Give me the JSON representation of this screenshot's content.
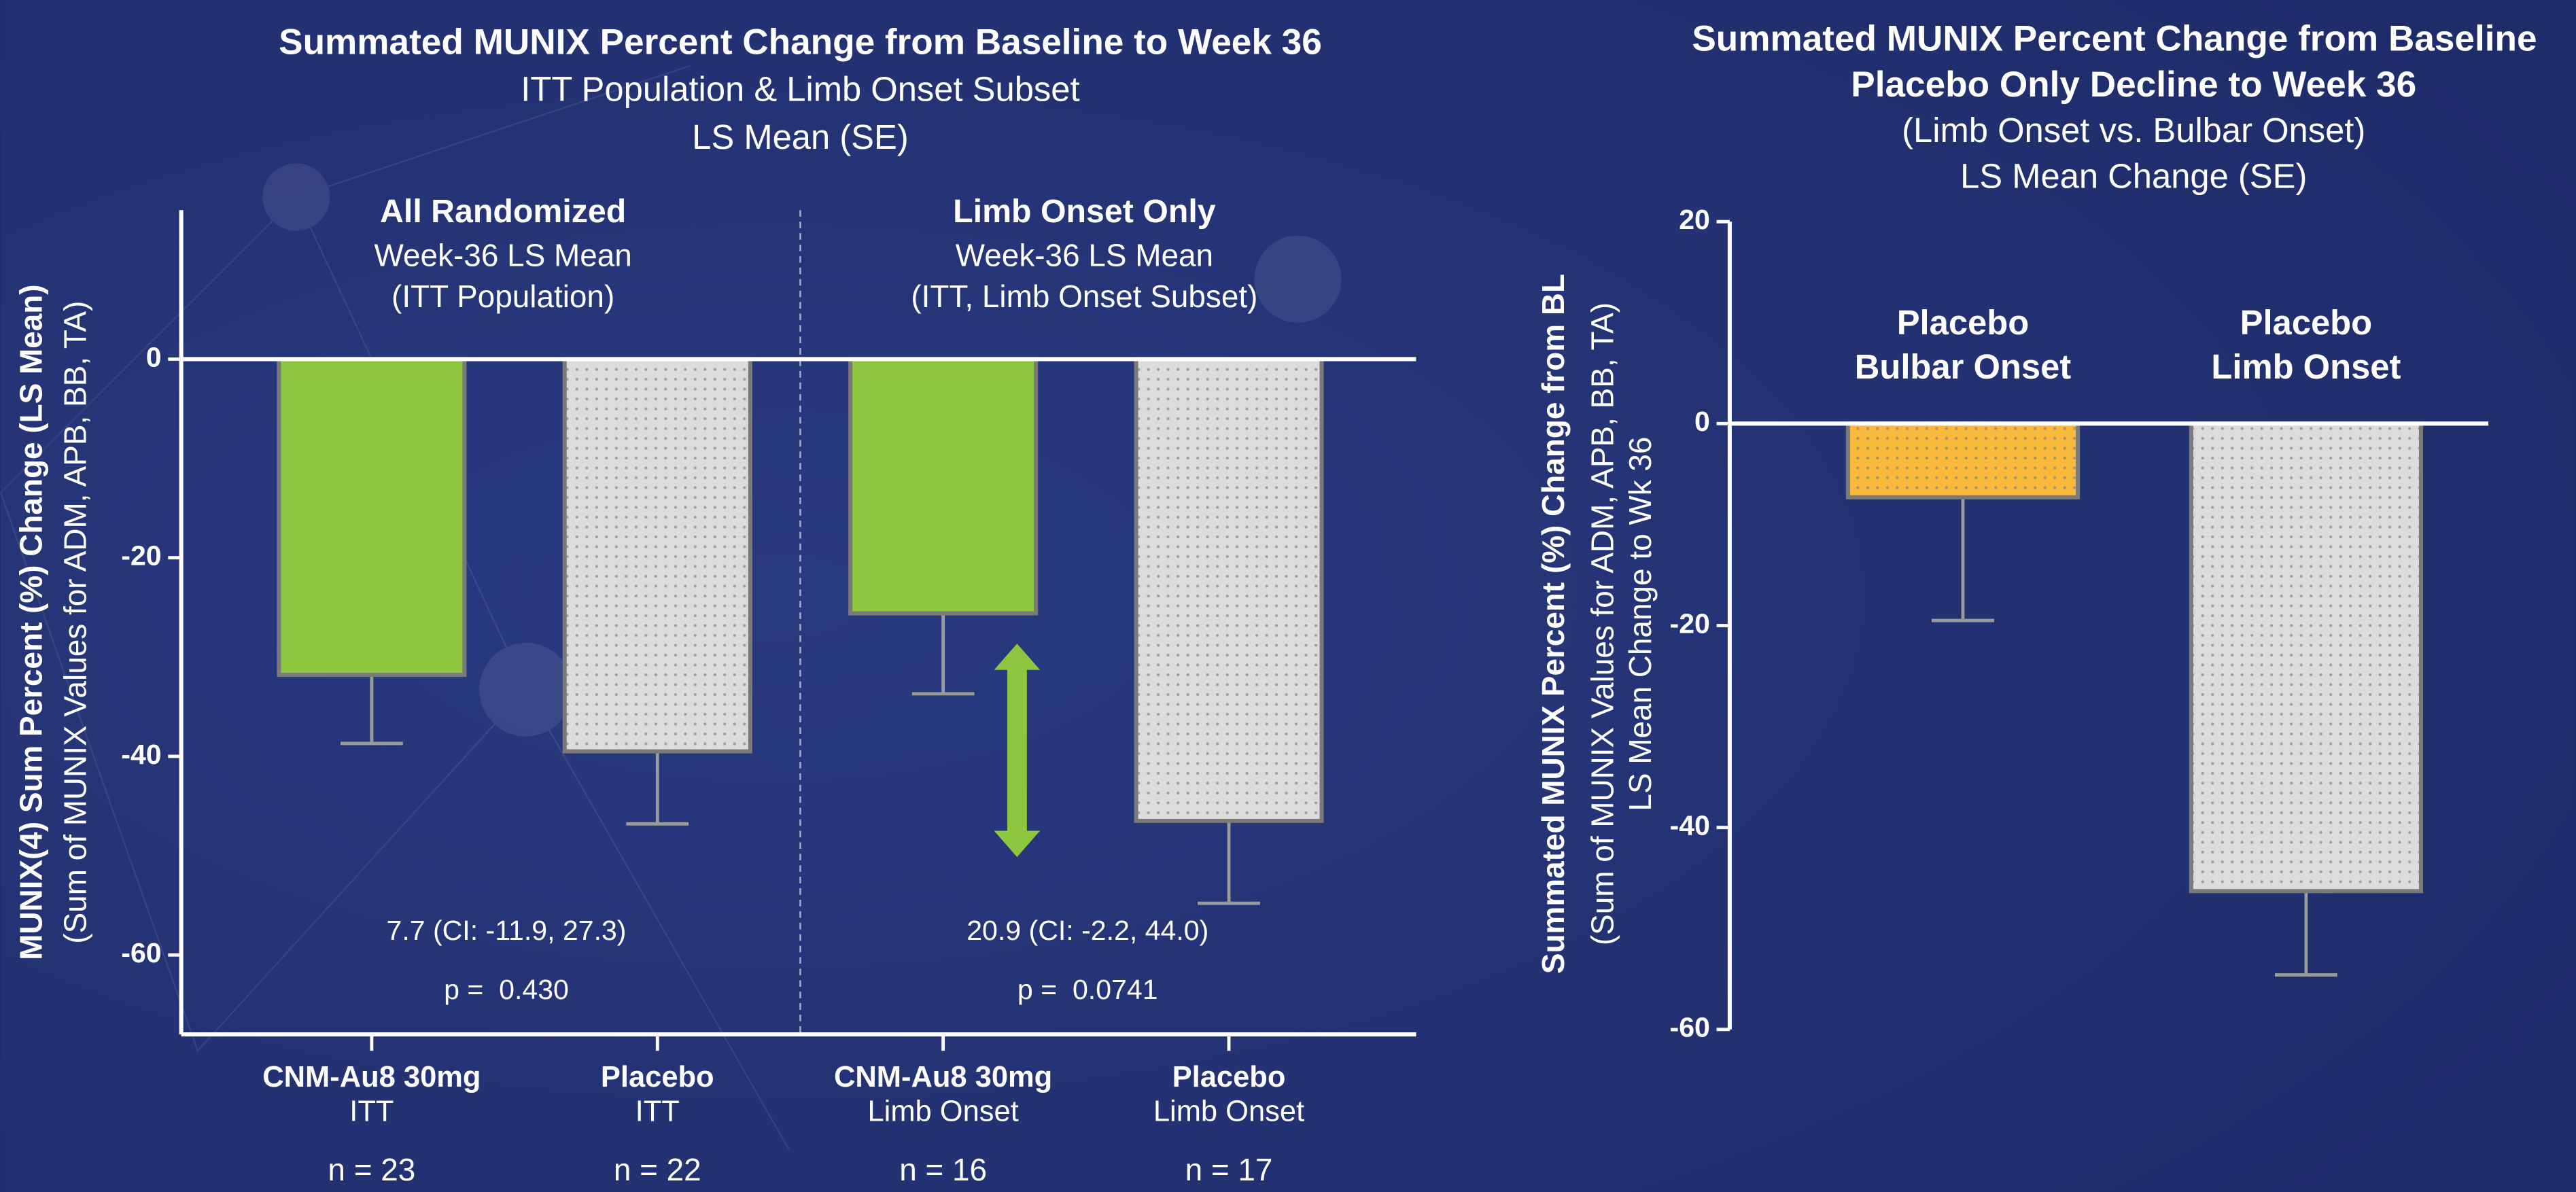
{
  "chart_data": [
    {
      "type": "bar",
      "title": "Summated MUNIX Percent Change from Baseline to Week 36",
      "subtitle_lines": [
        "ITT Population & Limb Onset Subset",
        "LS Mean (SE)"
      ],
      "ylabel_lines": [
        "MUNIX(4) Sum Percent (%) Change (LS Mean)",
        "(Sum of MUNIX Values for ADM, APB, BB, TA)"
      ],
      "ylim": [
        -68,
        15
      ],
      "yticks": [
        0,
        -20,
        -40,
        -60
      ],
      "categories": [
        "CNM-Au8 30mg",
        "Placebo",
        "CNM-Au8 30mg",
        "Placebo"
      ],
      "category_sublabels": [
        "ITT",
        "ITT",
        "Limb Onset",
        "Limb Onset"
      ],
      "n_labels": [
        "n = 23",
        "n = 22",
        "n = 16",
        "n = 17"
      ],
      "values": [
        -31.8,
        -39.5,
        -25.6,
        -46.5
      ],
      "errors": [
        6.9,
        7.3,
        8.1,
        8.3
      ],
      "colors": [
        "#8dc63f",
        "#dcdcdc",
        "#8dc63f",
        "#dcdcdc"
      ],
      "patterns": [
        "none",
        "dots",
        "none",
        "dots"
      ],
      "groups": [
        {
          "title": "All Randomized",
          "lines": [
            "Week-36 LS Mean",
            "(ITT Population)"
          ],
          "estimate": "7.7 (CI: -11.9, 27.3)",
          "p_value": "p =  0.430"
        },
        {
          "title": "Limb Onset Only",
          "lines": [
            "Week-36 LS Mean",
            "(ITT, Limb Onset Subset)"
          ],
          "estimate": "20.9 (CI: -2.2, 44.0)",
          "p_value": "p =  0.0741"
        }
      ]
    },
    {
      "type": "bar",
      "title": [
        "Summated MUNIX Percent Change from Baseline",
        "Placebo Only Decline to Week 36"
      ],
      "subtitle_lines": [
        "(Limb Onset vs. Bulbar Onset)",
        "LS Mean Change (SE)"
      ],
      "ylabel_lines": [
        "Summated MUNIX Percent (%) Change from BL",
        "(Sum of MUNIX Values for ADM, APB, BB, TA)",
        "LS Mean Change to Wk 36"
      ],
      "ylim": [
        -60,
        20
      ],
      "yticks": [
        20,
        0,
        -20,
        -40,
        -60
      ],
      "categories": [
        "Placebo",
        "Placebo"
      ],
      "category_sublabels": [
        "Bulbar Onset",
        "Limb Onset"
      ],
      "values": [
        -7.3,
        -46.3
      ],
      "errors": [
        12.2,
        8.3
      ],
      "colors": [
        "#f9b93a",
        "#dcdcdc"
      ],
      "patterns": [
        "dots",
        "dots"
      ]
    }
  ]
}
